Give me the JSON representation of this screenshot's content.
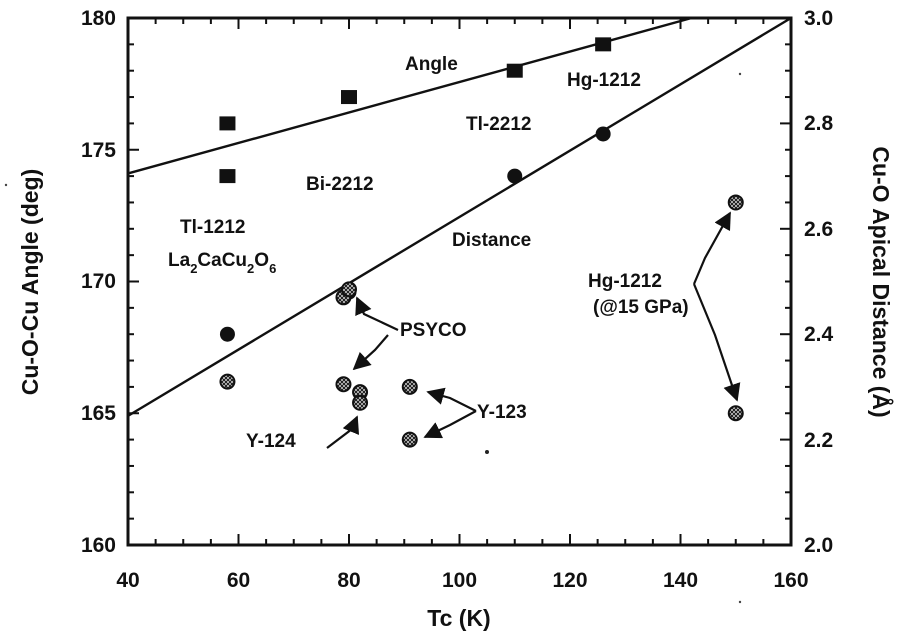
{
  "chart_data": {
    "type": "scatter",
    "xlabel": "Tc (K)",
    "ylabel_left": "Cu-O-Cu Angle (deg)",
    "ylabel_right": "Cu-O Apical Distance (Å)",
    "xlim": [
      40,
      160
    ],
    "ylim_left": [
      160,
      180
    ],
    "ylim_right": [
      2.0,
      3.0
    ],
    "xticks": [
      "40",
      "60",
      "80",
      "100",
      "120",
      "140",
      "160"
    ],
    "yticks_left": [
      "160",
      "165",
      "170",
      "175",
      "180"
    ],
    "yticks_right": [
      "2.0",
      "2.2",
      "2.4",
      "2.6",
      "2.8",
      "3.0"
    ],
    "grid": false,
    "series": [
      {
        "marker": "square",
        "axis": "left",
        "points": [
          [
            58,
            176
          ],
          [
            58,
            174
          ],
          [
            80,
            177
          ],
          [
            110,
            178
          ],
          [
            126,
            179
          ]
        ]
      },
      {
        "marker": "circle",
        "axis": "right",
        "points": [
          [
            58,
            2.4
          ],
          [
            80,
            2.48
          ],
          [
            110,
            2.7
          ],
          [
            126,
            2.78
          ]
        ]
      },
      {
        "marker": "hatched",
        "axis": "left",
        "points": [
          [
            58,
            166.2
          ],
          [
            79,
            169.4
          ],
          [
            80,
            169.7
          ],
          [
            79,
            166.1
          ],
          [
            82,
            165.8
          ],
          [
            82,
            165.4
          ],
          [
            91,
            166
          ],
          [
            91,
            164
          ],
          [
            150,
            173
          ],
          [
            150,
            165
          ]
        ]
      }
    ],
    "fit_lines": [
      {
        "name": "Angle",
        "axis": "left",
        "x": [
          40,
          142
        ],
        "y": [
          174.1,
          180
        ]
      },
      {
        "name": "Distance",
        "axis": "left",
        "x": [
          40,
          160
        ],
        "y": [
          164.9,
          180
        ]
      }
    ],
    "annotations": {
      "angle": "Angle",
      "distance": "Distance",
      "hg1212": "Hg-1212",
      "tl2212": "Tl-2212",
      "bi2212": "Bi-2212",
      "tl1212": "Tl-1212",
      "la_main": "La",
      "la_sub1": "2",
      "la_mid1": "CaCu",
      "la_sub2": "2",
      "la_mid2": "O",
      "la_sub3": "6",
      "psyco": "PSYCO",
      "y124": "Y-124",
      "y123": "Y-123",
      "hg_pressure_1": "Hg-1212",
      "hg_pressure_2": "(@15 GPa)"
    }
  }
}
